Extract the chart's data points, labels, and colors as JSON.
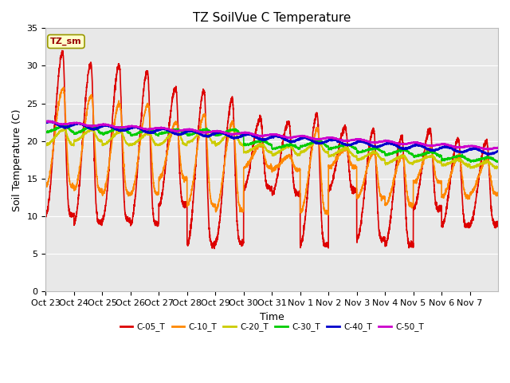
{
  "title": "TZ SoilVue C Temperature",
  "ylabel": "Soil Temperature (C)",
  "xlabel": "Time",
  "annotation": "TZ_sm",
  "ylim": [
    0,
    35
  ],
  "yticks": [
    0,
    5,
    10,
    15,
    20,
    25,
    30,
    35
  ],
  "series_colors": [
    "#dd0000",
    "#ff8800",
    "#cccc00",
    "#00cc00",
    "#0000cc",
    "#cc00cc"
  ],
  "series_labels": [
    "C-05_T",
    "C-10_T",
    "C-20_T",
    "C-30_T",
    "C-40_T",
    "C-50_T"
  ],
  "xtick_labels": [
    "Oct 23",
    "Oct 24",
    "Oct 25",
    "Oct 26",
    "Oct 27",
    "Oct 28",
    "Oct 29",
    "Oct 30",
    "Oct 31",
    "Nov 1",
    "Nov 2",
    "Nov 3",
    "Nov 4",
    "Nov 5",
    "Nov 6",
    "Nov 7"
  ],
  "plot_bg_color": "#e8e8e8",
  "fig_bg_color": "#ffffff",
  "grid_color": "#ffffff",
  "title_fontsize": 11,
  "axis_label_fontsize": 9,
  "tick_fontsize": 8
}
